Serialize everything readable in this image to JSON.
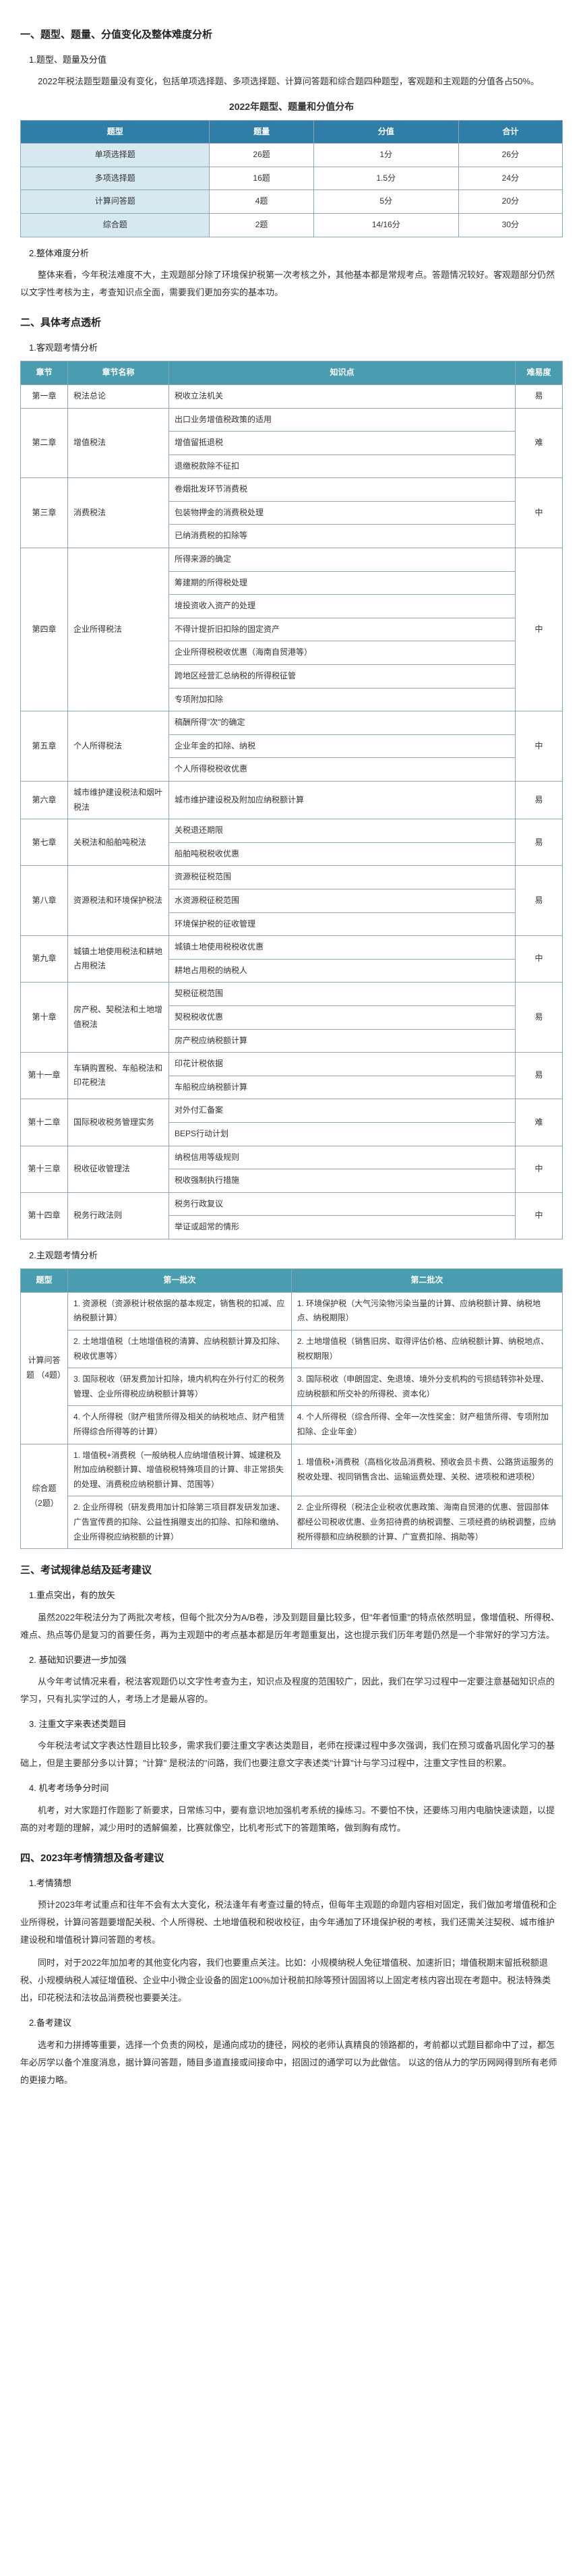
{
  "section1": {
    "title": "一、题型、题量、分值变化及整体难度分析",
    "sub1": "1.题型、题量及分值",
    "p1": "2022年税法题型题量没有变化，包括单项选择题、多项选择题、计算问答题和综合题四种题型，客观题和主观题的分值各占50%。",
    "table1": {
      "caption": "2022年题型、题量和分值分布",
      "headers": [
        "题型",
        "题量",
        "分值",
        "合计"
      ],
      "rows": [
        [
          "单项选择题",
          "26题",
          "1分",
          "26分"
        ],
        [
          "多项选择题",
          "16题",
          "1.5分",
          "24分"
        ],
        [
          "计算问答题",
          "4题",
          "5分",
          "20分"
        ],
        [
          "综合题",
          "2题",
          "14/16分",
          "30分"
        ]
      ]
    },
    "sub2": "2.整体难度分析",
    "p2": "整体来看，今年税法难度不大，主观题部分除了环境保护税第一次考核之外，其他基本都是常规考点。答题情况较好。客观题部分仍然以文字性考核为主，考查知识点全面，需要我们更加夯实的基本功。"
  },
  "section2": {
    "title": "二、具体考点透析",
    "sub1": "1.客观题考情分析",
    "table2": {
      "headers": [
        "章节",
        "章节名称",
        "知识点",
        "难易度"
      ],
      "rows": [
        {
          "ch": "第一章",
          "name": "税法总论",
          "points": [
            "税收立法机关"
          ],
          "diff": "易"
        },
        {
          "ch": "第二章",
          "name": "增值税法",
          "points": [
            "出口业务增值税政策的适用",
            "增值留抵退税",
            "退缴税款除不征扣"
          ],
          "diff": "难"
        },
        {
          "ch": "第三章",
          "name": "消费税法",
          "points": [
            "卷烟批发环节消费税",
            "包装物押金的消费税处理",
            "已纳消费税的扣除等"
          ],
          "diff": "中"
        },
        {
          "ch": "第四章",
          "name": "企业所得税法",
          "points": [
            "所得来源的确定",
            "筹建期的所得税处理",
            "境投资收入资产的处理",
            "不得计提折旧扣除的固定资产",
            "企业所得税税收优惠（海南自贸港等）",
            "跨地区经营汇总纳税的所得税征管",
            "专项附加扣除"
          ],
          "diff": "中"
        },
        {
          "ch": "第五章",
          "name": "个人所得税法",
          "points": [
            "稿酬所得\"次\"的确定",
            "企业年金的扣除、纳税",
            "个人所得税税收优惠"
          ],
          "diff": "中"
        },
        {
          "ch": "第六章",
          "name": "城市维护建设税法和烟叶税法",
          "points": [
            "城市维护建设税及附加应纳税额计算"
          ],
          "diff": "易"
        },
        {
          "ch": "第七章",
          "name": "关税法和船舶吨税法",
          "points": [
            "关税退还期限",
            "船舶吨税税收优惠"
          ],
          "diff": "易"
        },
        {
          "ch": "第八章",
          "name": "资源税法和环境保护税法",
          "points": [
            "资源税征税范围",
            "水资源税征税范围",
            "环境保护税的征收管理"
          ],
          "diff": "易"
        },
        {
          "ch": "第九章",
          "name": "城镇土地使用税法和耕地占用税法",
          "points": [
            "城镇土地使用税税收优惠",
            "耕地占用税的纳税人"
          ],
          "diff": "中"
        },
        {
          "ch": "第十章",
          "name": "房产税、契税法和土地增值税法",
          "points": [
            "契税征税范围",
            "契税税收优惠",
            "房产税应纳税额计算"
          ],
          "diff": "易"
        },
        {
          "ch": "第十一章",
          "name": "车辆购置税、车船税法和印花税法",
          "points": [
            "印花计税依据",
            "车船税应纳税额计算"
          ],
          "diff": "易"
        },
        {
          "ch": "第十二章",
          "name": "国际税收税务管理实务",
          "points": [
            "对外付汇备案",
            "BEPS行动计划"
          ],
          "diff": "难"
        },
        {
          "ch": "第十三章",
          "name": "税收征收管理法",
          "points": [
            "纳税信用等级规则",
            "税收强制执行措施"
          ],
          "diff": "中"
        },
        {
          "ch": "第十四章",
          "name": "税务行政法则",
          "points": [
            "税务行政复议",
            "举证或超常的情形"
          ],
          "diff": "中"
        }
      ]
    },
    "sub2": "2.主观题考情分析",
    "table3": {
      "headers": [
        "题型",
        "第一批次",
        "第二批次"
      ],
      "rows": [
        {
          "type": "计算问答题 （4题）",
          "items": [
            [
              "1. 资源税（资源税计税依据的基本规定，销售税的扣减、应纳税额计算）",
              "1. 环境保护税（大气污染物污染当量的计算、应纳税额计算、纳税地点、纳税期限）"
            ],
            [
              "2. 土地增值税（土地增值税的清算、应纳税额计算及扣除、税收优惠等）",
              "2. 土地增值税（销售旧房、取得评估价格、应纳税额计算、纳税地点、税权期限）"
            ],
            [
              "3. 国际税收（研发费加计扣除，境内机构在外行付汇的税务管理、企业所得税应纳税额计算等）",
              "3. 国际税收（申朗固定、免退境、境外分支机构的亏损结转弥补处理、应纳税额和所交补的所得税、资本化）"
            ],
            [
              "4. 个人所得税（财产租赁所得及相关的纳税地点、财产租赁所得综合所得等的计算）",
              "4. 个人所得税（综合所得、全年一次性奖金：财产租赁所得、专项附加扣除、企业年金）"
            ]
          ]
        },
        {
          "type": "综合题 （2题）",
          "items": [
            [
              "1. 增值税+消费税（一般纳税人应纳增值税计算、城建税及附加应纳税额计算、增值税税特殊项目的计算、非正常损失的处理、消费税应纳税额计算、范围等）",
              "1. 增值税+消费税（高档化妆品消费税、预收会员卡费、公路货运服务的税收处理、视同销售含出、运输运费处理、关税、进项税和进项税）"
            ],
            [
              "2. 企业所得税（研发费用加计扣除第三项目群发研发加速、广告宣传费的扣除、公益性捐赠支出的扣除、扣除和缴纳、企业所得税应纳税额的计算）",
              "2. 企业所得税（税法企业税收优惠政策、海南自贸港的优惠、营园部体都经公司税收优惠、业务招待费的纳税调整、三项经费的纳税调整，应纳税所得额和应纳税额的计算、广宣费扣除、捐助等）"
            ]
          ]
        }
      ]
    }
  },
  "section3": {
    "title": "三、考试规律总结及延考建议",
    "sub1": "1.重点突出，有的放矢",
    "p1": "虽然2022年税法分为了两批次考核，但每个批次分为A/B卷，涉及到题目量比较多，但\"年者恒重\"的特点依然明显，像增值税、所得税、难点、热点等仍是复习的首要任务，再为主观题中的考点基本都是历年考题重复出，这也提示我们历年考题仍然是一个非常好的学习方法。",
    "sub2": "2. 基础知识要进一步加强",
    "p2": "从今年考试情况来看，税法客观题仍以文字性考查为主，知识点及程度的范围较广，因此，我们在学习过程中一定要注意基础知识点的学习，只有扎实学过的人，考场上才是最从容的。",
    "sub3": "3. 注重文字来表述类题目",
    "p3": "今年税法考试文字表达性题目比较多，需求我们要注重文字表达类题目，老师在授课过程中多次强调，我们在预习或备巩固化学习的基础上，但是主要部分多以计算；\"计算\" 是税法的\"问路，我们也要注意文字表述类\"计算\"计与学习过程中，注重文字性目的积累。",
    "sub4": "4. 机考考场争分时间",
    "p4": "机考，对大家题打作题影了新要求，日常练习中，要有意识地加强机考系统的操练习。不要怕不快，还要练习用内电脑快速读题，以提高的对考题的理解，减少用时的透解偏差，比赛就像空，比机考形式下的答题策略，做到胸有成竹。"
  },
  "section4": {
    "title": "四、2023年考情猜想及备考建议",
    "sub1": "1.考情猜想",
    "p1_1": "预计2023年考试重点和往年不会有太大变化，税法逢年有考查过量的特点，但每年主观题的命题内容相对固定，我们做加考增值税和企业所得税，计算问答题要增配关税、个人所得税、土地增值税和税收校征，由今年通加了环境保护税的考核，我们还需关注契税、城市维护建设税和增值税计算问答题的考核。",
    "p1_2": "同时，对于2022年加加考的其他变化内容，我们也要重点关注。比如：小规模纳税人免征增值税、加速折旧；增值税期末留抵税额退税、小规模纳税人减征增值税、企业中小微企业设备的固定100%加计税前扣除等预计固固将以上固定考核内容出现在考题中。税法特殊类出，印花税法和法妆品消费税也要要关注。",
    "sub2": "2.备考建议",
    "p2": "选考和力拼搏等重要，选择一个负责的网校，是通向成功的捷径，网校的老师认真精良的领路都的，考前都以式题目都命中了过，都怎年必厉学以备个准度消息，据计算问答题，随目多道直接或间接命中，招固过的通学可以为此做信。 以这的倍从力的学历网网得到所有老师的更接力略。"
  }
}
